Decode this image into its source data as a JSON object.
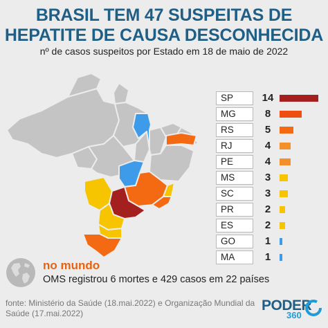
{
  "header": {
    "title_line1": "BRASIL TEM 47 SUSPEITAS DE",
    "title_line2": "HEPATITE DE CAUSA DESCONHECIDA",
    "subtitle": "nº de casos suspeitos por Estado em 18 de maio de 2022"
  },
  "chart_data": {
    "type": "bar",
    "orientation": "horizontal",
    "categories": [
      "SP",
      "MG",
      "RS",
      "RJ",
      "PE",
      "MS",
      "SC",
      "PR",
      "ES",
      "GO",
      "MA"
    ],
    "values": [
      14,
      8,
      5,
      4,
      4,
      3,
      3,
      2,
      2,
      1,
      1
    ],
    "colors": [
      "#a3201e",
      "#f04e10",
      "#f46a12",
      "#f4902b",
      "#f4902b",
      "#f6c500",
      "#f6c500",
      "#f6c500",
      "#f6c500",
      "#3d9be9",
      "#3d9be9"
    ],
    "xlim": [
      0,
      14
    ]
  },
  "map_colors": {
    "none": "#c4c4c4",
    "low": "#3d9be9",
    "mid": "#f6c500",
    "high": "#f46a12",
    "top": "#a3201e",
    "stroke": "#ececec"
  },
  "world": {
    "title": "no mundo",
    "text": "OMS registrou 6 mortes e 429 casos em 22 países"
  },
  "source": "fonte: Ministério da Saúde (18.mai.2022) e Organização Mundial da Saúde (17.mai.2022)",
  "logo": {
    "word": "PODER",
    "number": "360"
  }
}
